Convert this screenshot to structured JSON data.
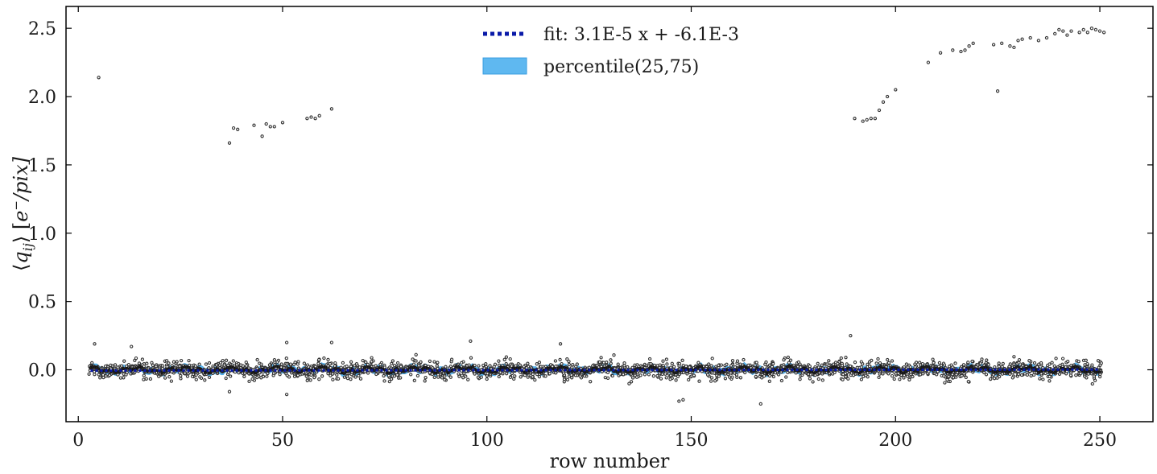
{
  "chart_data": {
    "type": "scatter",
    "xlabel": "row number",
    "ylabel": "⟨q_ij⟩ [e⁻/pix]",
    "ylabel_parts": {
      "lang": "⟨",
      "q": "q",
      "sub": "ij",
      "rang": "⟩",
      "unit_open": " [",
      "e": "e",
      "sup": "−",
      "unit_rest": "/pix]"
    },
    "xlim": [
      -3,
      263
    ],
    "ylim": [
      -0.38,
      2.66
    ],
    "xticks": [
      0,
      50,
      100,
      150,
      200,
      250
    ],
    "xtick_labels": [
      "0",
      "50",
      "100",
      "150",
      "200",
      "250"
    ],
    "yticks": [
      0.0,
      0.5,
      1.0,
      1.5,
      2.0,
      2.5
    ],
    "ytick_labels": [
      "0.0",
      "0.5",
      "1.0",
      "1.5",
      "2.0",
      "2.5"
    ],
    "legend_position": "top-center",
    "legend": [
      {
        "label": "fit: 3.1E-5 x + -6.1E-3",
        "style": "dotted-line",
        "color": "#0a1aa8"
      },
      {
        "label": "percentile(25,75)",
        "style": "filled-patch",
        "color": "#5fb8f0"
      }
    ],
    "series": [
      {
        "name": "fit: 3.1E-5 x + -6.1E-3",
        "kind": "line",
        "slope": 3.1e-05,
        "intercept": -0.0061,
        "x_range": [
          3,
          250
        ]
      },
      {
        "name": "percentile(25,75)",
        "kind": "band",
        "x_range": [
          3,
          250
        ],
        "half_width": 0.022
      },
      {
        "kind": "points",
        "main_band": {
          "x_range": [
            3,
            250
          ],
          "center": 0.0,
          "spread_inner": 0.03,
          "spread_outer": 0.09,
          "points_per_row": 14
        },
        "outliers": [
          [
            5,
            2.14
          ],
          [
            37,
            1.66
          ],
          [
            38,
            1.77
          ],
          [
            39,
            1.76
          ],
          [
            43,
            1.79
          ],
          [
            45,
            1.71
          ],
          [
            46,
            1.8
          ],
          [
            47,
            1.78
          ],
          [
            48,
            1.78
          ],
          [
            50,
            1.81
          ],
          [
            56,
            1.84
          ],
          [
            57,
            1.85
          ],
          [
            58,
            1.84
          ],
          [
            59,
            1.86
          ],
          [
            62,
            1.91
          ],
          [
            190,
            1.84
          ],
          [
            192,
            1.82
          ],
          [
            193,
            1.83
          ],
          [
            194,
            1.84
          ],
          [
            195,
            1.84
          ],
          [
            196,
            1.9
          ],
          [
            197,
            1.96
          ],
          [
            198,
            2.0
          ],
          [
            200,
            2.05
          ],
          [
            208,
            2.25
          ],
          [
            211,
            2.32
          ],
          [
            214,
            2.34
          ],
          [
            216,
            2.33
          ],
          [
            217,
            2.34
          ],
          [
            218,
            2.37
          ],
          [
            219,
            2.39
          ],
          [
            224,
            2.38
          ],
          [
            225,
            2.04
          ],
          [
            226,
            2.39
          ],
          [
            228,
            2.37
          ],
          [
            229,
            2.36
          ],
          [
            230,
            2.41
          ],
          [
            231,
            2.42
          ],
          [
            233,
            2.43
          ],
          [
            235,
            2.41
          ],
          [
            237,
            2.43
          ],
          [
            239,
            2.46
          ],
          [
            240,
            2.49
          ],
          [
            241,
            2.48
          ],
          [
            242,
            2.45
          ],
          [
            243,
            2.48
          ],
          [
            245,
            2.47
          ],
          [
            246,
            2.49
          ],
          [
            247,
            2.47
          ],
          [
            248,
            2.5
          ],
          [
            249,
            2.49
          ],
          [
            250,
            2.48
          ],
          [
            251,
            2.47
          ],
          [
            4,
            0.19
          ],
          [
            13,
            0.17
          ],
          [
            51,
            0.2
          ],
          [
            62,
            0.2
          ],
          [
            96,
            0.21
          ],
          [
            118,
            0.19
          ],
          [
            189,
            0.25
          ],
          [
            51,
            -0.18
          ],
          [
            148,
            -0.22
          ],
          [
            147,
            -0.23
          ],
          [
            167,
            -0.25
          ],
          [
            37,
            -0.16
          ]
        ]
      }
    ]
  }
}
